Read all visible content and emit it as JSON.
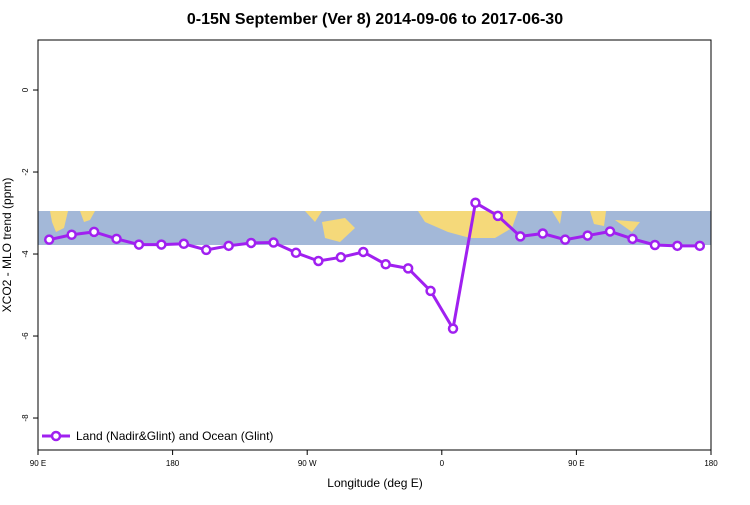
{
  "chart_data": {
    "type": "line",
    "title": "0-15N September (Ver 8)   2014-09-06 to 2017-06-30",
    "x_label": "Longitude (deg E)",
    "y_label": "XCO2 - MLO trend (ppm)",
    "x": [
      97.5,
      112.5,
      127.5,
      142.5,
      157.5,
      172.5,
      187.5,
      202.5,
      217.5,
      232.5,
      247.5,
      262.5,
      277.5,
      292.5,
      307.5,
      322.5,
      337.5,
      352.5,
      367.5,
      382.5,
      397.5,
      412.5,
      427.5,
      442.5,
      457.5,
      472.5,
      487.5,
      502.5,
      517.5,
      532.5
    ],
    "series": [
      {
        "name": "Land (Nadir&Glint) and Ocean (Glint)",
        "color": "#a020f0",
        "values": [
          -3.65,
          -3.53,
          -3.46,
          -3.63,
          -3.77,
          -3.77,
          -3.75,
          -3.9,
          -3.8,
          -3.73,
          -3.72,
          -3.97,
          -4.17,
          -4.08,
          -3.95,
          -4.25,
          -4.35,
          -4.9,
          -5.82,
          -2.75,
          -3.07,
          -3.57,
          -3.5,
          -3.65,
          -3.55,
          -3.45,
          -3.63,
          -3.78,
          -3.8,
          -3.8
        ]
      }
    ],
    "xlim": [
      90,
      540
    ],
    "xticks": [
      {
        "value": 90,
        "label": "90 E"
      },
      180,
      {
        "value": 270,
        "label": "90 W"
      },
      {
        "value": 360,
        "label": "0"
      },
      {
        "value": 450,
        "label": "90 E"
      },
      {
        "value": 540,
        "label": "180"
      }
    ],
    "ylim": [
      -8.78,
      1.22
    ],
    "yticks": [
      0,
      -2,
      -4,
      -6,
      -8
    ],
    "legend": "bottom-left"
  }
}
